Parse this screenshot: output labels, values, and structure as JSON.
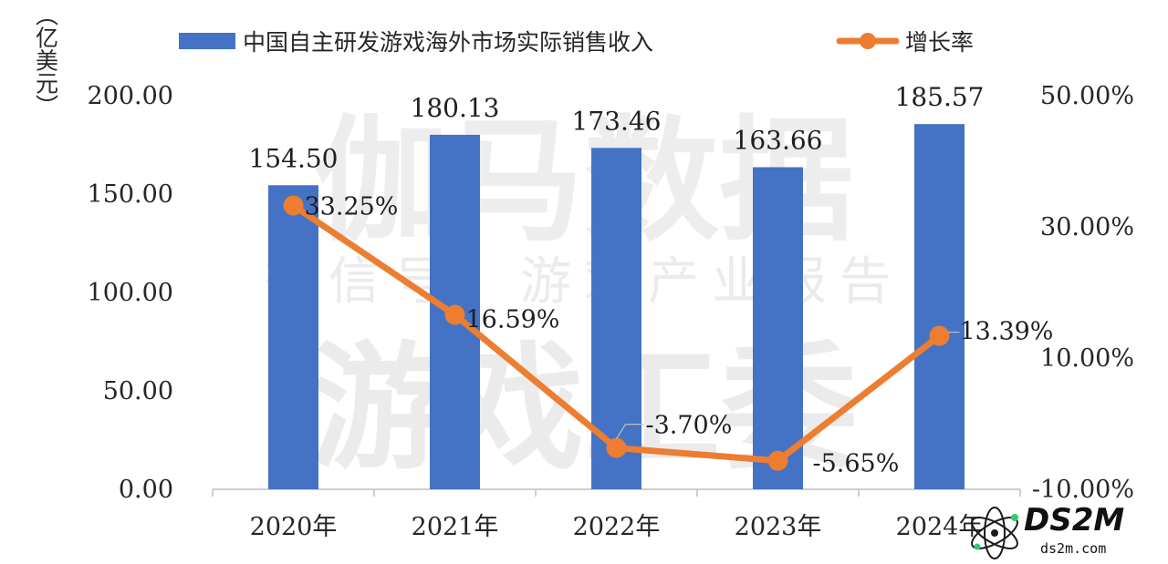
{
  "chart_data": {
    "type": "bar",
    "categories": [
      "2020年",
      "2021年",
      "2022年",
      "2023年",
      "2024年"
    ],
    "series": [
      {
        "name": "中国自主研发游戏海外市场实际销售收入",
        "type": "bar",
        "axis": "left",
        "values": [
          154.5,
          180.13,
          173.46,
          163.66,
          185.57
        ],
        "labels": [
          "154.50",
          "180.13",
          "173.46",
          "163.66",
          "185.57"
        ],
        "color": "#4472c4"
      },
      {
        "name": "增长率",
        "type": "line",
        "axis": "right",
        "values": [
          33.25,
          16.59,
          -3.7,
          -5.65,
          13.39
        ],
        "labels": [
          "33.25%",
          "16.59%",
          "-3.70%",
          "-5.65%",
          "13.39%"
        ],
        "color": "#ed7d31"
      }
    ],
    "ylabel": "（亿美元）",
    "ylim": [
      0,
      200
    ],
    "yticks": [
      "0.00",
      "50.00",
      "100.00",
      "150.00",
      "200.00"
    ],
    "y2lim": [
      -10,
      50
    ],
    "y2ticks": [
      "-10.00%",
      "10.00%",
      "30.00%",
      "50.00%"
    ],
    "legend_position": "top",
    "grid": false
  },
  "watermarks": {
    "main": "伽马数据",
    "sub": "微信号：游戏产业报告",
    "bottom": "游戏工委",
    "logo_text": "DS2M",
    "logo_url": "ds2m.com"
  }
}
